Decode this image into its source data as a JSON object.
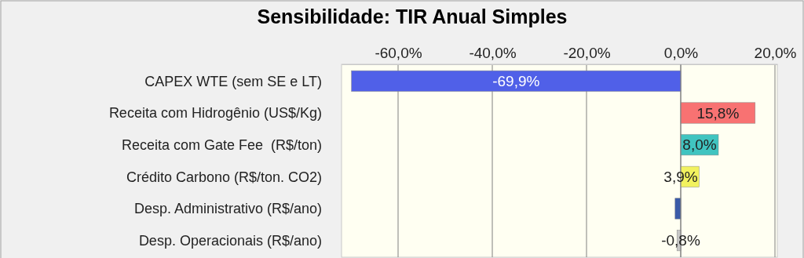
{
  "chart_data": {
    "type": "bar",
    "orientation": "horizontal",
    "title": "Sensibilidade: TIR Anual Simples",
    "categories": [
      "CAPEX WTE (sem SE e LT)",
      "Receita com Hidrogênio (US$/Kg)",
      "Receita com Gate Fee  (R$/ton)",
      "Crédito Carbono (R$/ton. CO2)",
      "Desp. Administrativo (R$/ano)",
      "Desp. Operacionais (R$/ano)"
    ],
    "values": [
      -69.9,
      15.8,
      8.0,
      3.9,
      -1.2,
      -0.8
    ],
    "colors": [
      "#5060e8",
      "#f87272",
      "#40c4c0",
      "#f2f25e",
      "#3a5aa8",
      "#c8c8c8"
    ],
    "value_labels": [
      "-69,9%",
      "15,8%",
      "8,0%",
      "3,9%",
      null,
      "-0,8%"
    ],
    "xlim": [
      -72,
      20.5
    ],
    "xticks": [
      {
        "value": -60,
        "label": "-60,0%"
      },
      {
        "value": -40,
        "label": "-40,0%"
      },
      {
        "value": -20,
        "label": "-20,0%"
      },
      {
        "value": 0,
        "label": "0,0%"
      },
      {
        "value": 20,
        "label": "20,0%"
      }
    ],
    "grid": "x"
  }
}
